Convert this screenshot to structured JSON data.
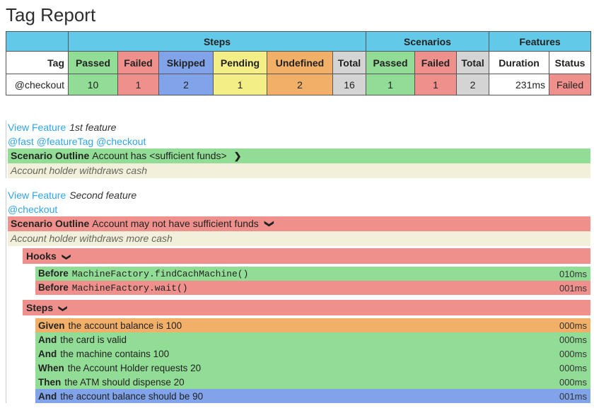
{
  "page": {
    "title": "Tag Report"
  },
  "summary_table": {
    "group_headers": [
      {
        "label": "",
        "colspan": 1
      },
      {
        "label": "Steps",
        "colspan": 6
      },
      {
        "label": "Scenarios",
        "colspan": 3
      },
      {
        "label": "Features",
        "colspan": 2
      }
    ],
    "columns": [
      {
        "label": "Tag",
        "type": "tag"
      },
      {
        "label": "Passed",
        "type": "passed"
      },
      {
        "label": "Failed",
        "type": "failed"
      },
      {
        "label": "Skipped",
        "type": "skipped"
      },
      {
        "label": "Pending",
        "type": "pending"
      },
      {
        "label": "Undefined",
        "type": "undefined"
      },
      {
        "label": "Total",
        "type": "total"
      },
      {
        "label": "Passed",
        "type": "passed"
      },
      {
        "label": "Failed",
        "type": "failed"
      },
      {
        "label": "Total",
        "type": "total"
      },
      {
        "label": "Duration",
        "type": "duration"
      },
      {
        "label": "Status",
        "type": "status"
      }
    ],
    "rows": [
      {
        "cells": [
          "@checkout",
          "10",
          "1",
          "2",
          "1",
          "2",
          "16",
          "1",
          "1",
          "2",
          "231ms",
          "Failed"
        ]
      }
    ]
  },
  "features": [
    {
      "link_label": "View Feature",
      "name": "1st feature",
      "tags": [
        "@fast",
        "@featureTag",
        "@checkout"
      ],
      "scenario": {
        "keyword": "Scenario Outline",
        "title": "Account has <sufficient funds>",
        "status": "passed",
        "expanded": false,
        "description": "Account holder withdraws cash",
        "sections": []
      }
    },
    {
      "link_label": "View Feature",
      "name": "Second feature",
      "tags": [
        "@checkout"
      ],
      "scenario": {
        "keyword": "Scenario Outline",
        "title": "Account may not have sufficient funds",
        "status": "failed",
        "expanded": true,
        "description": "Account holder withdraws more cash",
        "sections": [
          {
            "label": "Hooks",
            "rows": [
              {
                "keyword": "Before",
                "text": "MachineFactory.findCachMachine()",
                "mono": true,
                "status": "passed",
                "duration": "010ms"
              },
              {
                "keyword": "Before",
                "text": "MachineFactory.wait()",
                "mono": true,
                "status": "failed",
                "duration": "001ms"
              }
            ]
          },
          {
            "label": "Steps",
            "rows": [
              {
                "keyword": "Given",
                "text": "the account balance is 100",
                "mono": false,
                "status": "undefined",
                "duration": "000ms"
              },
              {
                "keyword": "And",
                "text": "the card is valid",
                "mono": false,
                "status": "passed",
                "duration": "000ms"
              },
              {
                "keyword": "And",
                "text": "the machine contains 100",
                "mono": false,
                "status": "passed",
                "duration": "000ms"
              },
              {
                "keyword": "When",
                "text": "the Account Holder requests 20",
                "mono": false,
                "status": "passed",
                "duration": "000ms"
              },
              {
                "keyword": "Then",
                "text": "the ATM should dispense 20",
                "mono": false,
                "status": "passed",
                "duration": "000ms"
              },
              {
                "keyword": "And",
                "text": "the account balance should be 90",
                "mono": false,
                "status": "skipped",
                "duration": "001ms"
              }
            ]
          }
        ]
      }
    }
  ],
  "icons": {
    "chevron_right": "❯",
    "chevron_down": "❯"
  },
  "colors": {
    "passed": "#92DD96",
    "failed": "#F0908C",
    "skipped": "#80A3EA",
    "pending": "#F3EE86",
    "undefined": "#F1AF68",
    "total": "#D4D4D4",
    "header": "#62C9E9",
    "description": "#F2F0DA",
    "link": "#2FA4E7"
  }
}
